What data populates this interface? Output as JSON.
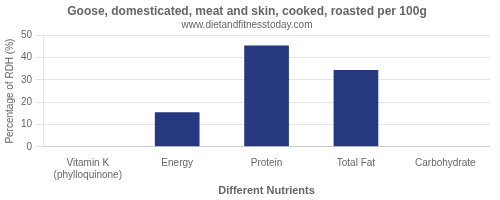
{
  "chart_data": {
    "type": "bar",
    "title": "Goose, domesticated, meat and skin, cooked, roasted per 100g",
    "subtitle": "www.dietandfitnesstoday.com",
    "xlabel": "Different Nutrients",
    "ylabel": "Percentage of RDH (%)",
    "categories": [
      "Vitamin K (phylloquinone)",
      "Energy",
      "Protein",
      "Total Fat",
      "Carbohydrate"
    ],
    "values": [
      0,
      15.5,
      45.5,
      34.5,
      0
    ],
    "color": "#253880",
    "ylim": [
      0,
      50
    ],
    "yticks": [
      0,
      10,
      20,
      30,
      40,
      50
    ],
    "grid": true
  }
}
